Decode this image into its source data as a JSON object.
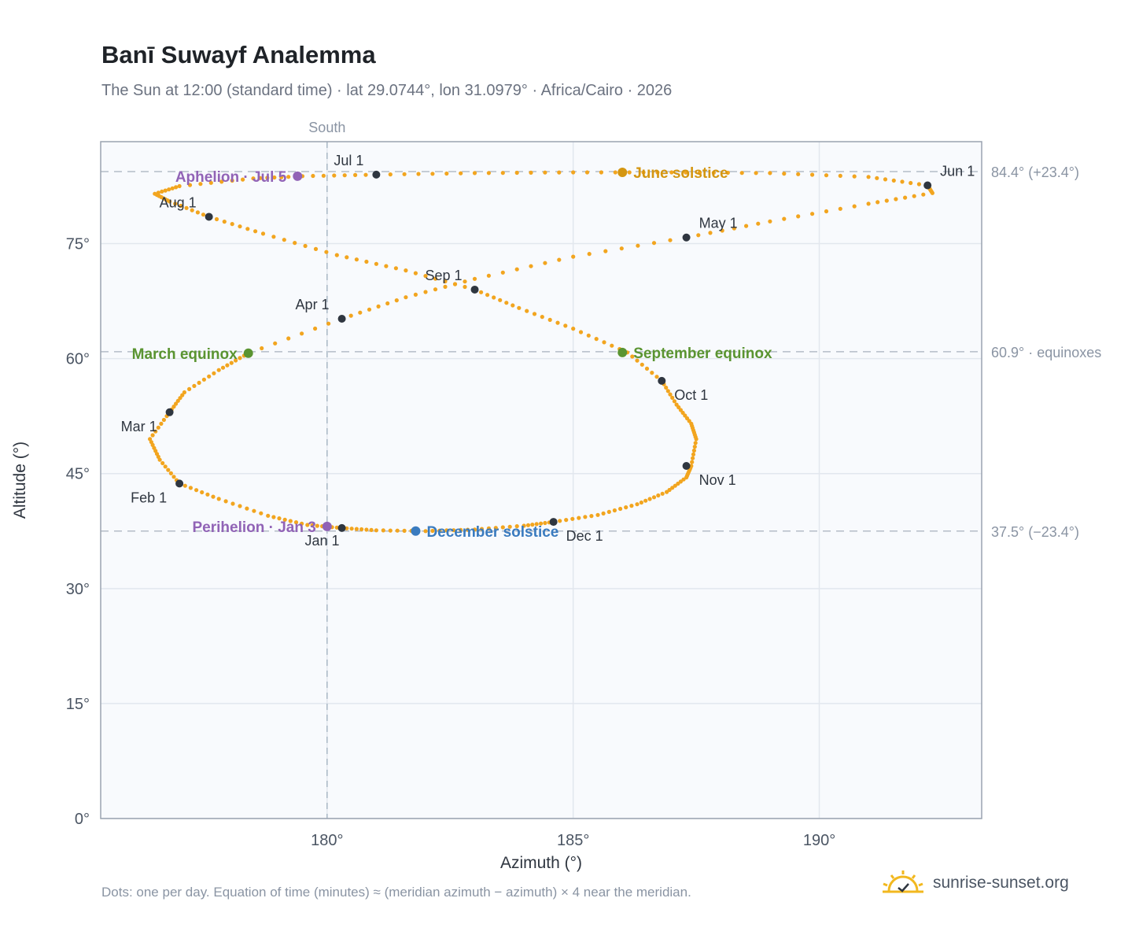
{
  "page": {
    "title": "Banī Suwayf Analemma",
    "subtitle": "The Sun at 12:00 (standard time) · lat 29.0744°, lon 31.0979° · Africa/Cairo · 2026",
    "footnote": "Dots: one per day. Equation of time (minutes) ≈ (meridian azimuth − azimuth) × 4 near the meridian.",
    "brand": "sunrise-sunset.org",
    "brand_icon": "sun-logo-icon"
  },
  "colors": {
    "path": "#f2a51f",
    "month_marker": "#2f3640",
    "equinox": "#5a9431",
    "june_solstice": "#d49611",
    "december_solstice": "#3a7bbf",
    "apsis": "#9163b6",
    "reference_line": "#b4bcc8",
    "plot_bg": "#f8fafd",
    "grid": "#e2e7ee"
  },
  "chart_data": {
    "type": "scatter",
    "xlabel": "Azimuth (°)",
    "ylabel": "Altitude (°)",
    "xlim": [
      175.4,
      193.3
    ],
    "ylim": [
      0,
      88.3
    ],
    "x_ticks": [
      {
        "value": 180,
        "label": "180°"
      },
      {
        "value": 185,
        "label": "185°"
      },
      {
        "value": 190,
        "label": "190°"
      }
    ],
    "y_ticks": [
      {
        "value": 0,
        "label": "0°"
      },
      {
        "value": 15,
        "label": "15°"
      },
      {
        "value": 30,
        "label": "30°"
      },
      {
        "value": 45,
        "label": "45°"
      },
      {
        "value": 60,
        "label": "60°"
      },
      {
        "value": 75,
        "label": "75°"
      }
    ],
    "grid": true,
    "south_line": {
      "value": 180,
      "label": "South"
    },
    "reference_lines": [
      {
        "value": 84.4,
        "label": "84.4° (+23.4°)"
      },
      {
        "value": 60.9,
        "label": "60.9° · equinoxes"
      },
      {
        "value": 37.5,
        "label": "37.5° (−23.4°)"
      }
    ],
    "path_points": [
      [
        180.3,
        37.9
      ],
      [
        181.0,
        37.6
      ],
      [
        182.0,
        37.5
      ],
      [
        183.0,
        37.7
      ],
      [
        184.0,
        38.2
      ],
      [
        184.6,
        38.7
      ],
      [
        185.5,
        39.6
      ],
      [
        186.3,
        41.0
      ],
      [
        186.9,
        42.6
      ],
      [
        187.3,
        44.5
      ],
      [
        187.4,
        46.0
      ],
      [
        187.5,
        49.5
      ],
      [
        187.4,
        51.5
      ],
      [
        187.1,
        54.0
      ],
      [
        186.8,
        57.1
      ],
      [
        186.1,
        60.8
      ],
      [
        185.0,
        63.9
      ],
      [
        183.9,
        66.6
      ],
      [
        183.0,
        69.0
      ],
      [
        181.6,
        71.5
      ],
      [
        180.2,
        73.5
      ],
      [
        178.7,
        76.3
      ],
      [
        177.6,
        78.5
      ],
      [
        176.8,
        80.5
      ],
      [
        176.5,
        81.5
      ],
      [
        177.0,
        82.5
      ],
      [
        178.5,
        83.5
      ],
      [
        179.5,
        83.8
      ],
      [
        181.0,
        84.0
      ],
      [
        183.0,
        84.2
      ],
      [
        185.0,
        84.3
      ],
      [
        187.0,
        84.3
      ],
      [
        189.0,
        84.2
      ],
      [
        191.0,
        83.7
      ],
      [
        192.2,
        82.6
      ],
      [
        192.3,
        81.6
      ],
      [
        191.0,
        80.2
      ],
      [
        189.0,
        77.9
      ],
      [
        187.3,
        75.8
      ],
      [
        185.0,
        73.3
      ],
      [
        183.0,
        70.4
      ],
      [
        181.6,
        68.0
      ],
      [
        180.3,
        65.2
      ],
      [
        178.4,
        60.7
      ],
      [
        177.8,
        58.5
      ],
      [
        177.1,
        55.6
      ],
      [
        176.8,
        53.0
      ],
      [
        176.4,
        49.5
      ],
      [
        176.6,
        46.8
      ],
      [
        177.0,
        43.7
      ],
      [
        177.8,
        41.7
      ],
      [
        178.8,
        39.5
      ],
      [
        179.6,
        38.3
      ],
      [
        180.3,
        37.9
      ]
    ],
    "month_markers": [
      {
        "label": "Jan 1",
        "az": 180.3,
        "alt": 37.9,
        "anchor": "end",
        "dx": -3,
        "dy": 22
      },
      {
        "label": "Feb 1",
        "az": 177.0,
        "alt": 43.7,
        "anchor": "end",
        "dx": -16,
        "dy": 24
      },
      {
        "label": "Mar 1",
        "az": 176.8,
        "alt": 53.0,
        "anchor": "end",
        "dx": -16,
        "dy": 24
      },
      {
        "label": "Apr 1",
        "az": 180.3,
        "alt": 65.2,
        "anchor": "end",
        "dx": -16,
        "dy": -12
      },
      {
        "label": "May 1",
        "az": 187.3,
        "alt": 75.8,
        "anchor": "start",
        "dx": 16,
        "dy": -12
      },
      {
        "label": "Jun 1",
        "az": 192.2,
        "alt": 82.6,
        "anchor": "start",
        "dx": 16,
        "dy": -12
      },
      {
        "label": "Jul 1",
        "az": 181.0,
        "alt": 84.0,
        "anchor": "end",
        "dx": -16,
        "dy": -12
      },
      {
        "label": "Aug 1",
        "az": 177.6,
        "alt": 78.5,
        "anchor": "end",
        "dx": -16,
        "dy": -12
      },
      {
        "label": "Sep 1",
        "az": 183.0,
        "alt": 69.0,
        "anchor": "end",
        "dx": -16,
        "dy": -12
      },
      {
        "label": "Oct 1",
        "az": 186.8,
        "alt": 57.1,
        "anchor": "start",
        "dx": 16,
        "dy": 24
      },
      {
        "label": "Nov 1",
        "az": 187.3,
        "alt": 46.0,
        "anchor": "start",
        "dx": 16,
        "dy": 24
      },
      {
        "label": "Dec 1",
        "az": 184.6,
        "alt": 38.7,
        "anchor": "start",
        "dx": 16,
        "dy": 24
      }
    ],
    "events": [
      {
        "label": "June solstice",
        "az": 186.0,
        "alt": 84.3,
        "color_key": "june_solstice",
        "side": "right"
      },
      {
        "label": "December solstice",
        "az": 181.8,
        "alt": 37.5,
        "color_key": "december_solstice",
        "side": "right"
      },
      {
        "label": "March equinox",
        "az": 178.4,
        "alt": 60.7,
        "color_key": "equinox",
        "side": "left"
      },
      {
        "label": "September equinox",
        "az": 186.0,
        "alt": 60.8,
        "color_key": "equinox",
        "side": "right"
      },
      {
        "label": "Aphelion · Jul 5",
        "az": 179.4,
        "alt": 83.8,
        "color_key": "apsis",
        "side": "left"
      },
      {
        "label": "Perihelion · Jan 3",
        "az": 180.0,
        "alt": 38.1,
        "color_key": "apsis",
        "side": "left"
      }
    ]
  }
}
